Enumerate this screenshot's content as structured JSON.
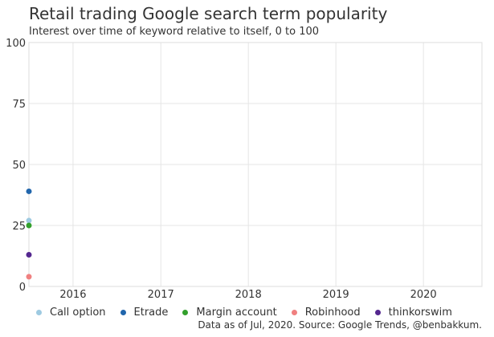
{
  "chart_data": {
    "type": "line",
    "title": "Retail trading Google search term popularity",
    "subtitle": "Interest over time of keyword relative to itself, 0 to 100",
    "caption": "Data as of Jul, 2020. Source: Google Trends, @benbakkum.",
    "x_axis": {
      "type": "date",
      "range": [
        "2015-07-01",
        "2020-09-01"
      ],
      "ticks": [
        "2016",
        "2017",
        "2018",
        "2019",
        "2020"
      ]
    },
    "y_axis": {
      "range": [
        0,
        100
      ],
      "ticks": [
        "0",
        "25",
        "50",
        "75",
        "100"
      ]
    },
    "grid": true,
    "legend_position": "bottom",
    "series": [
      {
        "name": "Call option",
        "color": "#9ecae1",
        "x": [
          "2015-07-01"
        ],
        "y": [
          27
        ]
      },
      {
        "name": "Etrade",
        "color": "#2166ac",
        "x": [
          "2015-07-01"
        ],
        "y": [
          39
        ]
      },
      {
        "name": "Margin account",
        "color": "#33a02c",
        "x": [
          "2015-07-01"
        ],
        "y": [
          25
        ]
      },
      {
        "name": "Robinhood",
        "color": "#f08080",
        "x": [
          "2015-07-01"
        ],
        "y": [
          4
        ]
      },
      {
        "name": "thinkorswim",
        "color": "#54278f",
        "x": [
          "2015-07-01"
        ],
        "y": [
          13
        ]
      }
    ]
  }
}
